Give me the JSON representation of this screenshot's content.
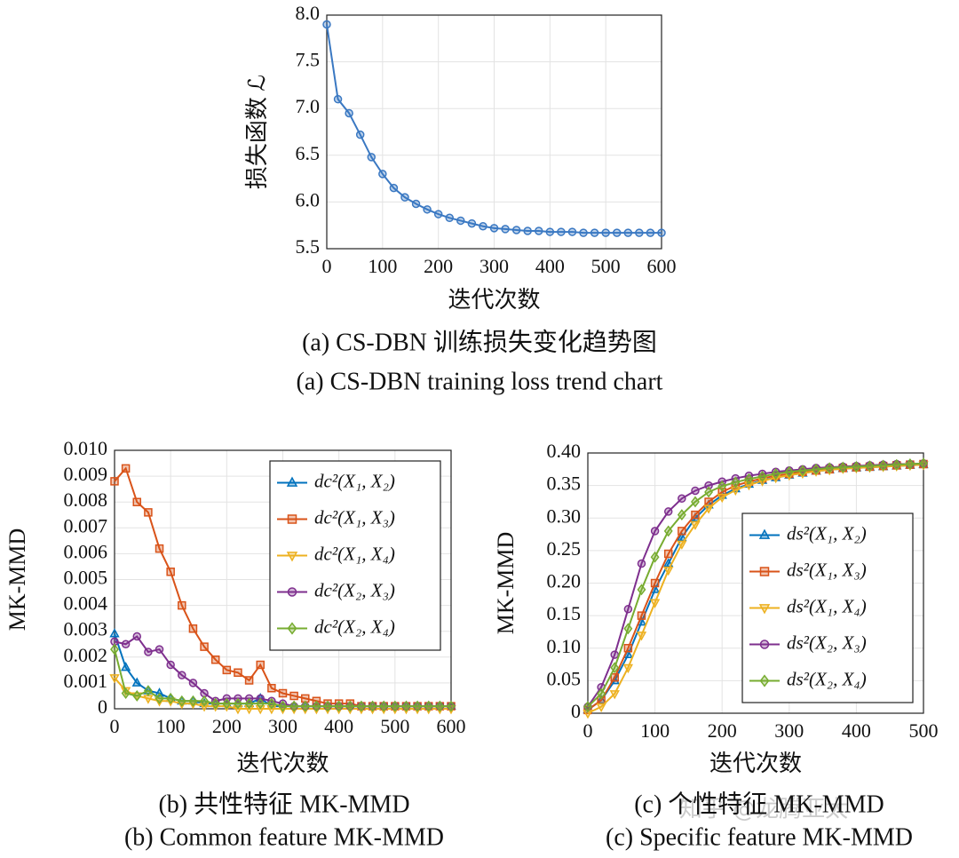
{
  "chart_data": [
    {
      "type": "line",
      "x_label": "迭代次数",
      "y_label": "损失函数 ℒ",
      "caption": [
        "(a) CS-DBN 训练损失变化趋势图",
        "(a) CS-DBN training loss trend chart"
      ],
      "x": [
        0,
        20,
        40,
        60,
        80,
        100,
        120,
        140,
        160,
        180,
        200,
        220,
        240,
        260,
        280,
        300,
        320,
        340,
        360,
        380,
        400,
        420,
        440,
        460,
        480,
        500,
        520,
        540,
        560,
        580,
        600
      ],
      "series": [
        {
          "color": "#3a78c2",
          "marker": "circle",
          "values": [
            7.9,
            7.1,
            6.95,
            6.72,
            6.48,
            6.3,
            6.15,
            6.05,
            5.98,
            5.92,
            5.87,
            5.83,
            5.8,
            5.77,
            5.74,
            5.72,
            5.71,
            5.7,
            5.69,
            5.69,
            5.68,
            5.68,
            5.68,
            5.67,
            5.67,
            5.67,
            5.67,
            5.67,
            5.67,
            5.67,
            5.67
          ]
        }
      ],
      "xlim": [
        0,
        600
      ],
      "xticks": [
        0,
        100,
        200,
        300,
        400,
        500,
        600
      ],
      "ylim": [
        5.5,
        8.0
      ],
      "yticks": [
        {
          "value": 8.0,
          "label": "8.0"
        },
        7.5,
        {
          "value": 7.0,
          "label": "7.0"
        },
        6.5,
        {
          "value": 6.0,
          "label": "6.0"
        },
        5.5
      ],
      "grid": true
    },
    {
      "type": "line",
      "x_label": "迭代次数",
      "y_label": "MK-MMD",
      "caption": [
        "(b) 共性特征 MK-MMD",
        "(b) Common feature MK-MMD"
      ],
      "legend": "upper right",
      "x": [
        0,
        20,
        40,
        60,
        80,
        100,
        120,
        140,
        160,
        180,
        200,
        220,
        240,
        260,
        280,
        300,
        320,
        340,
        360,
        380,
        400,
        420,
        440,
        460,
        480,
        500,
        520,
        540,
        560,
        580,
        600
      ],
      "series": [
        {
          "name": "dc²(X₁, X₂)",
          "color": "#0072bd",
          "marker": "triangle-up",
          "values": [
            0.0029,
            0.0016,
            0.001,
            0.0007,
            0.0006,
            0.0004,
            0.0003,
            0.0003,
            0.0002,
            0.0002,
            0.0002,
            0.0002,
            0.0002,
            0.0004,
            0.0001,
            0.0001,
            0.0001,
            0.0001,
            0.0001,
            0.0001,
            0.0001,
            0.0001,
            0.0001,
            0.0001,
            0.0001,
            0.0001,
            0.0001,
            0.0001,
            0.0001,
            0.0001,
            0.0001
          ]
        },
        {
          "name": "dc²(X₁, X₃)",
          "color": "#d95319",
          "marker": "square",
          "values": [
            0.0088,
            0.0093,
            0.008,
            0.0076,
            0.0062,
            0.0053,
            0.004,
            0.0031,
            0.0024,
            0.0019,
            0.0015,
            0.0014,
            0.0011,
            0.0017,
            0.0008,
            0.0006,
            0.0005,
            0.0004,
            0.0003,
            0.0002,
            0.0002,
            0.0002,
            0.0001,
            0.0001,
            0.0001,
            0.0001,
            0.0001,
            0.0001,
            0.0001,
            0.0001,
            0.0001
          ]
        },
        {
          "name": "dc²(X₁, X₄)",
          "color": "#edb120",
          "marker": "triangle-down",
          "values": [
            0.0012,
            0.0007,
            0.0005,
            0.0004,
            0.0003,
            0.0003,
            0.0002,
            0.0002,
            0.0001,
            0.0001,
            0.0001,
            0,
            0,
            0,
            0,
            0,
            0,
            0,
            0,
            0,
            0,
            0,
            0,
            0,
            0,
            0,
            0,
            0,
            0,
            0,
            0
          ]
        },
        {
          "name": "dc²(X₂, X₃)",
          "color": "#7e2f8e",
          "marker": "circle",
          "values": [
            0.0026,
            0.0025,
            0.0028,
            0.0022,
            0.0023,
            0.0017,
            0.0013,
            0.001,
            0.0006,
            0.0003,
            0.0004,
            0.0004,
            0.0004,
            0.0004,
            0.0003,
            0.0002,
            0.0001,
            0.0001,
            0.0001,
            0.0001,
            0.0001,
            0.0001,
            0.0001,
            0.0001,
            0.0001,
            0.0001,
            0.0001,
            0.0001,
            0.0001,
            0.0001,
            0.0001
          ]
        },
        {
          "name": "dc²(X₂, X₄)",
          "color": "#77ac30",
          "marker": "diamond",
          "values": [
            0.0023,
            0.0006,
            0.0005,
            0.0007,
            0.0004,
            0.0004,
            0.0003,
            0.0003,
            0.0003,
            0.0002,
            0.0002,
            0.0002,
            0.0002,
            0.0002,
            0.0002,
            0.0001,
            0.0001,
            0.0001,
            0.0001,
            0.0001,
            0.0001,
            0.0001,
            0.0001,
            0.0001,
            0.0001,
            0.0001,
            0.0001,
            0.0001,
            0.0001,
            0.0001,
            0.0001
          ]
        }
      ],
      "xlim": [
        0,
        600
      ],
      "xticks": [
        0,
        100,
        200,
        300,
        400,
        500,
        600
      ],
      "ylim": [
        0,
        0.01
      ],
      "yticks": [
        {
          "value": 0.01,
          "label": "0.010"
        },
        0.009,
        0.008,
        0.007,
        0.006,
        0.005,
        0.004,
        0.003,
        0.002,
        0.001,
        0
      ],
      "grid": true
    },
    {
      "type": "line",
      "x_label": "迭代次数",
      "y_label": "MK-MMD",
      "caption": [
        "(c) 个性特征 MK-MMD",
        "(c) Specific feature MK-MMD"
      ],
      "legend": "lower right",
      "x": [
        0,
        20,
        40,
        60,
        80,
        100,
        120,
        140,
        160,
        180,
        200,
        220,
        240,
        260,
        280,
        300,
        320,
        340,
        360,
        380,
        400,
        420,
        440,
        460,
        480,
        500
      ],
      "series": [
        {
          "name": "ds²(X₁, X₂)",
          "color": "#0072bd",
          "marker": "triangle-up",
          "values": [
            0.005,
            0.02,
            0.05,
            0.09,
            0.14,
            0.19,
            0.23,
            0.27,
            0.3,
            0.32,
            0.335,
            0.345,
            0.352,
            0.358,
            0.362,
            0.366,
            0.369,
            0.372,
            0.374,
            0.376,
            0.377,
            0.378,
            0.379,
            0.38,
            0.381,
            0.382
          ]
        },
        {
          "name": "ds²(X₁, X₃)",
          "color": "#d95319",
          "marker": "square",
          "values": [
            0.005,
            0.02,
            0.055,
            0.1,
            0.15,
            0.2,
            0.245,
            0.28,
            0.305,
            0.325,
            0.34,
            0.35,
            0.356,
            0.361,
            0.365,
            0.368,
            0.371,
            0.373,
            0.375,
            0.377,
            0.378,
            0.379,
            0.38,
            0.381,
            0.382,
            0.383
          ]
        },
        {
          "name": "ds²(X₁, X₄)",
          "color": "#edb120",
          "marker": "triangle-down",
          "values": [
            0,
            0.01,
            0.03,
            0.07,
            0.12,
            0.17,
            0.22,
            0.26,
            0.29,
            0.315,
            0.332,
            0.343,
            0.351,
            0.357,
            0.362,
            0.366,
            0.369,
            0.372,
            0.374,
            0.376,
            0.377,
            0.378,
            0.379,
            0.38,
            0.381,
            0.382
          ]
        },
        {
          "name": "ds²(X₂, X₃)",
          "color": "#7e2f8e",
          "marker": "circle",
          "values": [
            0.01,
            0.04,
            0.09,
            0.16,
            0.23,
            0.28,
            0.31,
            0.33,
            0.342,
            0.35,
            0.356,
            0.361,
            0.365,
            0.368,
            0.371,
            0.373,
            0.375,
            0.377,
            0.378,
            0.379,
            0.38,
            0.381,
            0.382,
            0.383,
            0.383,
            0.384
          ]
        },
        {
          "name": "ds²(X₂, X₄)",
          "color": "#77ac30",
          "marker": "diamond",
          "values": [
            0.01,
            0.03,
            0.07,
            0.13,
            0.19,
            0.24,
            0.28,
            0.305,
            0.325,
            0.34,
            0.349,
            0.355,
            0.36,
            0.364,
            0.368,
            0.371,
            0.373,
            0.375,
            0.377,
            0.378,
            0.379,
            0.38,
            0.381,
            0.382,
            0.383,
            0.384
          ]
        }
      ],
      "xlim": [
        0,
        500
      ],
      "xticks": [
        0,
        100,
        200,
        300,
        400,
        500
      ],
      "ylim": [
        0,
        0.4
      ],
      "yticks": [
        {
          "value": 0.4,
          "label": "0.40"
        },
        0.35,
        {
          "value": 0.3,
          "label": "0.30"
        },
        0.25,
        {
          "value": 0.2,
          "label": "0.20"
        },
        0.15,
        {
          "value": 0.1,
          "label": "0.10"
        },
        0.05,
        0
      ],
      "grid": true
    }
  ],
  "watermark": "知乎 @龙腾亚太"
}
